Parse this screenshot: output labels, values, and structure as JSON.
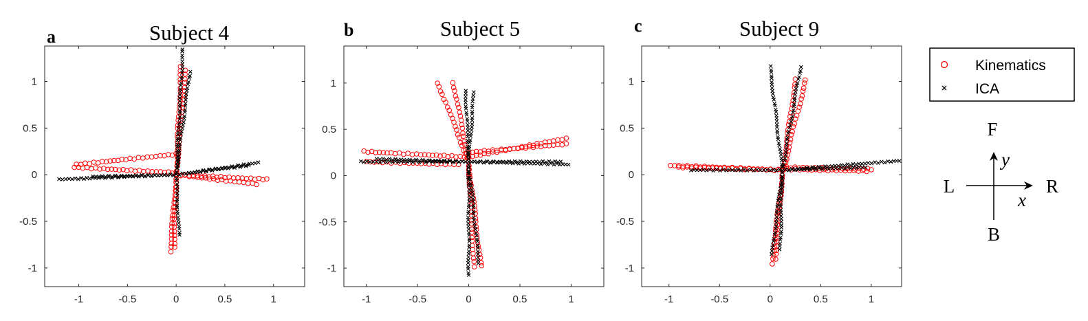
{
  "colors": {
    "kinematics": "#ff0000",
    "ica": "#000000"
  },
  "legend": {
    "kinematics_label": "Kinematics",
    "ica_label": "ICA",
    "kinematics_icon": "circle-marker",
    "ica_icon": "x-marker"
  },
  "compass": {
    "forward": "F",
    "back": "B",
    "left": "L",
    "right": "R",
    "x_var": "x",
    "y_var": "y"
  },
  "chart_data": [
    {
      "type": "scatter",
      "letter": "a",
      "title": "Subject 4",
      "xlim": [
        -1.35,
        1.32
      ],
      "ylim": [
        -1.2,
        1.38
      ],
      "xticks": [
        -1,
        -0.5,
        0,
        0.5,
        1
      ],
      "yticks": [
        -1,
        -0.5,
        0,
        0.5,
        1
      ],
      "grid": false,
      "series": [
        {
          "name": "Kinematics",
          "marker": "circle",
          "segments": [
            {
              "from": [
                0.0,
                0.0
              ],
              "to": [
                0.05,
                1.16
              ]
            },
            {
              "from": [
                0.0,
                0.0
              ],
              "to": [
                0.1,
                1.12
              ]
            },
            {
              "from": [
                0.0,
                0.0
              ],
              "to": [
                -0.06,
                -0.82
              ]
            },
            {
              "from": [
                0.0,
                0.0
              ],
              "to": [
                -0.02,
                -0.78
              ]
            },
            {
              "from": [
                0.0,
                0.0
              ],
              "to": [
                0.82,
                -0.1
              ]
            },
            {
              "from": [
                0.0,
                0.0
              ],
              "to": [
                0.93,
                -0.05
              ]
            },
            {
              "from": [
                0.0,
                0.02
              ],
              "to": [
                -1.04,
                0.08
              ]
            },
            {
              "from": [
                0.0,
                0.22
              ],
              "to": [
                -1.02,
                0.11
              ]
            }
          ]
        },
        {
          "name": "ICA",
          "marker": "x",
          "segments": [
            {
              "from": [
                0.0,
                0.0
              ],
              "to": [
                0.07,
                1.35
              ]
            },
            {
              "from": [
                0.0,
                0.0
              ],
              "to": [
                0.14,
                1.1
              ]
            },
            {
              "from": [
                0.0,
                0.0
              ],
              "to": [
                0.03,
                -0.65
              ]
            },
            {
              "from": [
                0.0,
                0.0
              ],
              "to": [
                0.85,
                0.13
              ]
            },
            {
              "from": [
                0.0,
                0.0
              ],
              "to": [
                0.75,
                0.1
              ]
            },
            {
              "from": [
                0.0,
                0.0
              ],
              "to": [
                -1.2,
                -0.05
              ]
            },
            {
              "from": [
                0.0,
                0.0
              ],
              "to": [
                -0.85,
                -0.02
              ]
            }
          ]
        }
      ]
    },
    {
      "type": "scatter",
      "letter": "b",
      "title": "Subject 5",
      "xlim": [
        -1.22,
        1.32
      ],
      "ylim": [
        -1.2,
        1.4
      ],
      "xticks": [
        -1,
        -0.5,
        0,
        0.5,
        1
      ],
      "yticks": [
        -1,
        -0.5,
        0,
        0.5,
        1
      ],
      "grid": false,
      "series": [
        {
          "name": "Kinematics",
          "marker": "circle",
          "segments": [
            {
              "from": [
                0.0,
                0.15
              ],
              "to": [
                -0.3,
                1.0
              ]
            },
            {
              "from": [
                0.0,
                0.15
              ],
              "to": [
                -0.15,
                1.0
              ]
            },
            {
              "from": [
                0.0,
                0.15
              ],
              "to": [
                0.05,
                -0.98
              ]
            },
            {
              "from": [
                0.0,
                0.15
              ],
              "to": [
                0.12,
                -0.98
              ]
            },
            {
              "from": [
                0.0,
                0.2
              ],
              "to": [
                0.95,
                0.4
              ]
            },
            {
              "from": [
                0.0,
                0.25
              ],
              "to": [
                0.95,
                0.34
              ]
            },
            {
              "from": [
                0.0,
                0.2
              ],
              "to": [
                -1.03,
                0.26
              ]
            },
            {
              "from": [
                -0.1,
                0.12
              ],
              "to": [
                -1.0,
                0.15
              ]
            }
          ]
        },
        {
          "name": "ICA",
          "marker": "x",
          "segments": [
            {
              "from": [
                0.0,
                0.15
              ],
              "to": [
                -0.03,
                0.92
              ]
            },
            {
              "from": [
                0.0,
                0.15
              ],
              "to": [
                0.05,
                0.9
              ]
            },
            {
              "from": [
                0.0,
                0.15
              ],
              "to": [
                0.0,
                -1.08
              ]
            },
            {
              "from": [
                0.0,
                0.15
              ],
              "to": [
                0.1,
                -0.95
              ]
            },
            {
              "from": [
                0.0,
                0.15
              ],
              "to": [
                0.98,
                0.12
              ]
            },
            {
              "from": [
                0.0,
                0.15
              ],
              "to": [
                0.9,
                0.15
              ]
            },
            {
              "from": [
                0.0,
                0.15
              ],
              "to": [
                -1.05,
                0.15
              ]
            },
            {
              "from": [
                0.0,
                0.15
              ],
              "to": [
                -0.9,
                0.18
              ]
            }
          ]
        }
      ]
    },
    {
      "type": "scatter",
      "letter": "c",
      "title": "Subject 9",
      "xlim": [
        -1.27,
        1.3
      ],
      "ylim": [
        -1.2,
        1.38
      ],
      "xticks": [
        -1,
        -0.5,
        0,
        0.5,
        1
      ],
      "yticks": [
        -1,
        -0.5,
        0,
        0.5,
        1
      ],
      "grid": false,
      "series": [
        {
          "name": "Kinematics",
          "marker": "circle",
          "segments": [
            {
              "from": [
                0.12,
                0.0
              ],
              "to": [
                0.35,
                1.02
              ]
            },
            {
              "from": [
                0.12,
                0.0
              ],
              "to": [
                0.25,
                1.02
              ]
            },
            {
              "from": [
                0.12,
                0.0
              ],
              "to": [
                0.02,
                -0.95
              ]
            },
            {
              "from": [
                0.12,
                0.0
              ],
              "to": [
                0.05,
                -0.9
              ]
            },
            {
              "from": [
                0.12,
                0.08
              ],
              "to": [
                1.0,
                0.06
              ]
            },
            {
              "from": [
                0.12,
                0.06
              ],
              "to": [
                0.95,
                0.04
              ]
            },
            {
              "from": [
                0.12,
                0.05
              ],
              "to": [
                -0.98,
                0.1
              ]
            },
            {
              "from": [
                0.12,
                0.05
              ],
              "to": [
                -0.9,
                0.08
              ]
            }
          ]
        },
        {
          "name": "ICA",
          "marker": "x",
          "segments": [
            {
              "from": [
                0.12,
                0.05
              ],
              "to": [
                0.0,
                1.16
              ]
            },
            {
              "from": [
                0.12,
                0.05
              ],
              "to": [
                0.3,
                1.15
              ]
            },
            {
              "from": [
                0.12,
                0.05
              ],
              "to": [
                0.02,
                -0.85
              ]
            },
            {
              "from": [
                0.12,
                0.05
              ],
              "to": [
                0.1,
                -0.8
              ]
            },
            {
              "from": [
                0.12,
                0.05
              ],
              "to": [
                1.28,
                0.15
              ]
            },
            {
              "from": [
                0.12,
                0.05
              ],
              "to": [
                0.95,
                0.08
              ]
            },
            {
              "from": [
                0.12,
                0.05
              ],
              "to": [
                -0.78,
                0.05
              ]
            }
          ]
        }
      ]
    }
  ]
}
